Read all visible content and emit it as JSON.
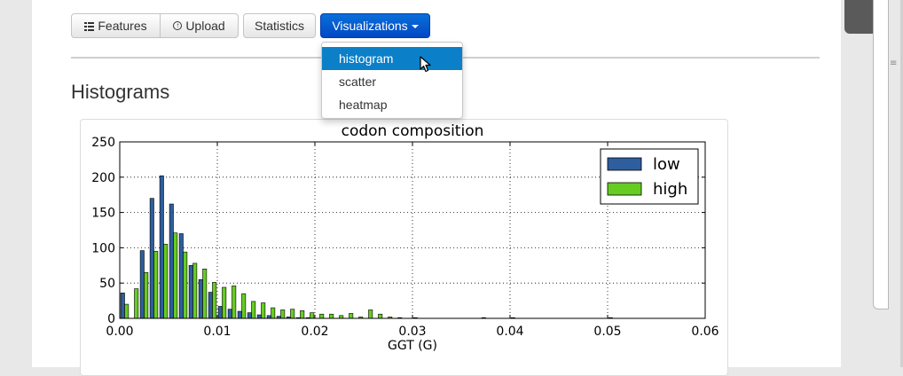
{
  "toolbar": {
    "features_label": "Features",
    "upload_label": "Upload",
    "statistics_label": "Statistics",
    "visualizations_label": "Visualizations"
  },
  "dropdown": {
    "items": [
      "histogram",
      "scatter",
      "heatmap"
    ],
    "selected": "histogram"
  },
  "heading": "Histograms",
  "colors": {
    "low": "#2e5e9e",
    "high": "#66cc22",
    "dropdown_highlight": "#0b7fc7",
    "primary_button": "#0a5fd4"
  },
  "icons": {
    "features": "list-icon",
    "upload": "upload-icon",
    "visualizations": "caret-down-icon"
  },
  "chart_data": {
    "type": "bar",
    "title": "codon composition",
    "xlabel": "GGT (G)",
    "ylabel": "",
    "xlim": [
      0.0,
      0.06
    ],
    "ylim": [
      0,
      250
    ],
    "xticks": [
      "0.00",
      "0.01",
      "0.02",
      "0.03",
      "0.04",
      "0.05",
      "0.06"
    ],
    "yticks": [
      "0",
      "50",
      "100",
      "150",
      "200",
      "250"
    ],
    "grid": true,
    "legend_position": "top-right",
    "bin_width": 0.001,
    "x": [
      0.0,
      0.001,
      0.002,
      0.003,
      0.004,
      0.005,
      0.006,
      0.007,
      0.008,
      0.009,
      0.01,
      0.011,
      0.012,
      0.013,
      0.014,
      0.015,
      0.016,
      0.017,
      0.018,
      0.019,
      0.02,
      0.021,
      0.022,
      0.023,
      0.024,
      0.025,
      0.026,
      0.027,
      0.028,
      0.029,
      0.03,
      0.031,
      0.032,
      0.033,
      0.034,
      0.035,
      0.036,
      0.037,
      0.038,
      0.039,
      0.04,
      0.041,
      0.042,
      0.043,
      0.044,
      0.045,
      0.046,
      0.047,
      0.048,
      0.049,
      0.05,
      0.051
    ],
    "series": [
      {
        "name": "low",
        "values": [
          36,
          0,
          96,
          170,
          202,
          162,
          120,
          75,
          55,
          37,
          17,
          13,
          10,
          8,
          5,
          4,
          3,
          2,
          1,
          1,
          0,
          0,
          0,
          0,
          0,
          0,
          0,
          0,
          0,
          0,
          1,
          0,
          0,
          0,
          0,
          0,
          0,
          1,
          0,
          0,
          1,
          0,
          0,
          0,
          0,
          0,
          0,
          0,
          0,
          0,
          1,
          0
        ]
      },
      {
        "name": "high",
        "values": [
          20,
          42,
          65,
          95,
          105,
          121,
          94,
          78,
          70,
          51,
          44,
          46,
          35,
          24,
          22,
          15,
          12,
          13,
          11,
          8,
          6,
          6,
          4,
          7,
          2,
          12,
          6,
          2,
          1,
          0,
          0,
          0,
          0,
          0,
          0,
          0,
          0,
          0,
          0,
          0,
          0,
          0,
          0,
          0,
          0,
          0,
          0,
          0,
          0,
          0,
          0,
          0
        ]
      }
    ]
  }
}
